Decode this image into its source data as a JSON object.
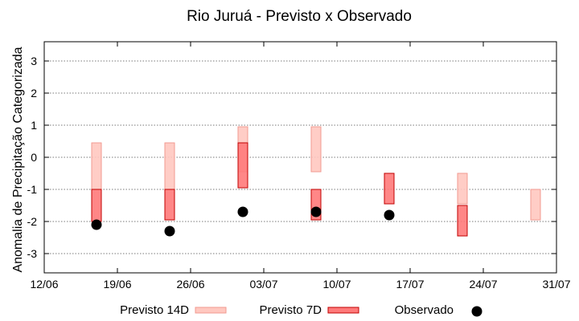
{
  "chart_data": {
    "type": "range-bar",
    "title": "Rio Juruá - Previsto x Observado",
    "xlabel": "",
    "ylabel": "Anomalia de Precipitação Categorizada",
    "xlim": [
      "2025-06-12",
      "2025-07-31"
    ],
    "ylim": [
      -3.6,
      3.6
    ],
    "x_ticks": [
      "12/06",
      "19/06",
      "26/06",
      "03/07",
      "10/07",
      "17/07",
      "24/07",
      "31/07"
    ],
    "y_ticks": [
      3,
      2,
      1,
      0,
      -1,
      -2,
      -3
    ],
    "grid": true,
    "legend_position": "bottom",
    "series": [
      {
        "name": "Previsto 14D",
        "kind": "range",
        "fill": "#ffc8c0",
        "stroke": "#f29a90",
        "points": [
          {
            "x": "2025-06-17",
            "low": -1.0,
            "high": 0.45
          },
          {
            "x": "2025-06-24",
            "low": -1.0,
            "high": 0.45
          },
          {
            "x": "2025-07-01",
            "low": -0.45,
            "high": 0.95
          },
          {
            "x": "2025-07-08",
            "low": -0.45,
            "high": 0.95
          },
          {
            "x": "2025-07-22",
            "low": -1.45,
            "high": -0.5
          },
          {
            "x": "2025-07-29",
            "low": -1.95,
            "high": -1.0
          }
        ]
      },
      {
        "name": "Previsto 7D",
        "kind": "range",
        "fill": "#ff7a7a",
        "stroke": "#c00000",
        "points": [
          {
            "x": "2025-06-17",
            "low": -2.0,
            "high": -1.0
          },
          {
            "x": "2025-06-24",
            "low": -1.95,
            "high": -1.0
          },
          {
            "x": "2025-07-01",
            "low": -0.95,
            "high": 0.45
          },
          {
            "x": "2025-07-08",
            "low": -1.95,
            "high": -1.0
          },
          {
            "x": "2025-07-15",
            "low": -1.45,
            "high": -0.5
          },
          {
            "x": "2025-07-22",
            "low": -2.45,
            "high": -1.5
          }
        ]
      },
      {
        "name": "Observado",
        "kind": "point",
        "color": "#000000",
        "points": [
          {
            "x": "2025-06-17",
            "y": -2.1
          },
          {
            "x": "2025-06-24",
            "y": -2.3
          },
          {
            "x": "2025-07-01",
            "y": -1.7
          },
          {
            "x": "2025-07-08",
            "y": -1.7
          },
          {
            "x": "2025-07-15",
            "y": -1.8
          }
        ]
      }
    ]
  }
}
